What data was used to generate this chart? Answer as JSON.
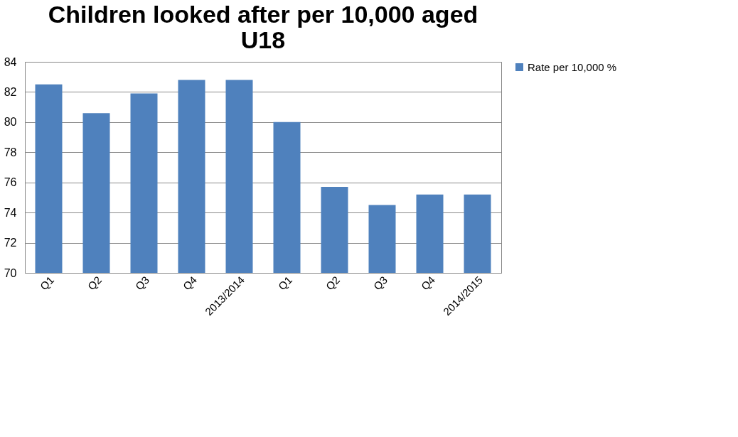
{
  "chart_data": {
    "type": "bar",
    "title": [
      "Children looked after per 10,000 aged",
      "U18"
    ],
    "categories": [
      "Q1",
      "Q2",
      "Q3",
      "Q4",
      "2013/2014",
      "Q1",
      "Q2",
      "Q3",
      "Q4",
      "2014/2015"
    ],
    "series": [
      {
        "name": "Rate per 10,000 %",
        "color": "#4f81bd",
        "values": [
          82.5,
          80.6,
          81.9,
          82.8,
          82.8,
          80.0,
          75.7,
          74.5,
          75.2,
          75.2
        ]
      }
    ],
    "ylim": [
      70,
      84
    ],
    "yticks": [
      70,
      72,
      74,
      76,
      78,
      80,
      82,
      84
    ],
    "grid": "y",
    "legend": "right"
  }
}
